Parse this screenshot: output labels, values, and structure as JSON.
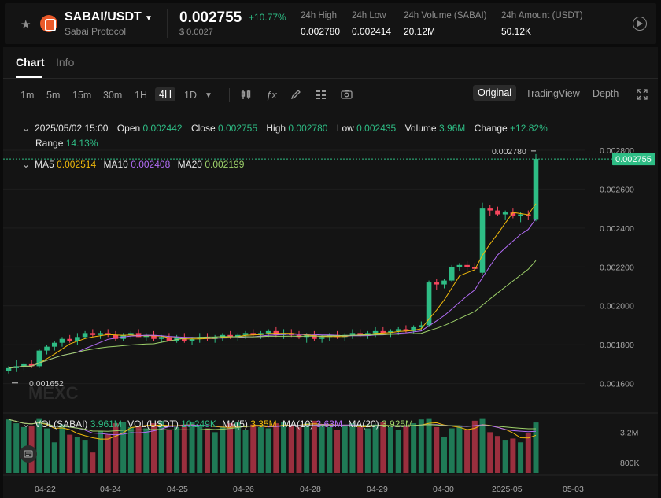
{
  "header": {
    "pair": "SABAI/USDT",
    "protocol": "Sabai Protocol",
    "price": "0.002755",
    "change": "+10.77%",
    "price_usd": "$ 0.0027",
    "stats": [
      {
        "label": "24h High",
        "value": "0.002780"
      },
      {
        "label": "24h Low",
        "value": "0.002414"
      },
      {
        "label": "24h Volume (SABAI)",
        "value": "20.12M"
      },
      {
        "label": "24h Amount (USDT)",
        "value": "50.12K"
      }
    ]
  },
  "tabs": [
    "Chart",
    "Info"
  ],
  "timeframes": [
    "1m",
    "5m",
    "15m",
    "30m",
    "1H",
    "4H",
    "1D"
  ],
  "active_timeframe": "4H",
  "views": [
    "Original",
    "TradingView",
    "Depth"
  ],
  "active_view": "Original",
  "ohlc": {
    "date": "2025/05/02 15:00",
    "open_label": "Open",
    "open": "0.002442",
    "close_label": "Close",
    "close": "0.002755",
    "high_label": "High",
    "high": "0.002780",
    "low_label": "Low",
    "low": "0.002435",
    "volume_label": "Volume",
    "volume": "3.96M",
    "change_label": "Change",
    "change": "+12.82%",
    "range_label": "Range",
    "range": "14.13%"
  },
  "ma": {
    "ma5_label": "MA5",
    "ma5": "0.002514",
    "ma10_label": "MA10",
    "ma10": "0.002408",
    "ma20_label": "MA20",
    "ma20": "0.002199"
  },
  "vol": {
    "sabai_label": "VOL(SABAI)",
    "sabai": "3.961M",
    "usdt_label": "VOL(USDT)",
    "usdt": "10.249K",
    "ma5_label": "MA(5)",
    "ma5": "3.35M",
    "ma10_label": "MA(10)",
    "ma10": "3.63M",
    "ma20_label": "MA(20)",
    "ma20": "3.925M"
  },
  "watermark": "MEXC",
  "colors": {
    "up": "#2ebd85",
    "down": "#f6465d",
    "ma5": "#f0b90b",
    "ma10": "#b26cf5",
    "ma20": "#9ed16a"
  },
  "chart_data": {
    "type": "candlestick",
    "price_axis_ticks": [
      "0.002800",
      "0.002600",
      "0.002400",
      "0.002200",
      "0.002000",
      "0.001800",
      "0.001600"
    ],
    "ylim": [
      0.00155,
      0.00282
    ],
    "volume_axis_ticks": [
      "3.2M",
      "800K"
    ],
    "x_ticks": [
      "04-22",
      "04-24",
      "04-25",
      "04-26",
      "04-28",
      "04-29",
      "04-30",
      "2025-05",
      "05-03"
    ],
    "current_price_label": "0.002755",
    "high_marker": "0.002780",
    "low_marker": "0.001652",
    "candles": [
      {
        "o": 0.001665,
        "h": 0.00169,
        "l": 0.001652,
        "c": 0.00168,
        "v": 4.2
      },
      {
        "o": 0.00168,
        "h": 0.00172,
        "l": 0.00166,
        "c": 0.00169,
        "v": 3.9
      },
      {
        "o": 0.00169,
        "h": 0.00171,
        "l": 0.00167,
        "c": 0.0017,
        "v": 3.6
      },
      {
        "o": 0.0017,
        "h": 0.00172,
        "l": 0.00168,
        "c": 0.00169,
        "v": 3.7
      },
      {
        "o": 0.00169,
        "h": 0.00178,
        "l": 0.00168,
        "c": 0.00177,
        "v": 4.3
      },
      {
        "o": 0.00177,
        "h": 0.0018,
        "l": 0.00175,
        "c": 0.00179,
        "v": 3.5
      },
      {
        "o": 0.00179,
        "h": 0.00182,
        "l": 0.00177,
        "c": 0.00181,
        "v": 2.4
      },
      {
        "o": 0.00181,
        "h": 0.00184,
        "l": 0.00179,
        "c": 0.00183,
        "v": 3.8
      },
      {
        "o": 0.00183,
        "h": 0.00185,
        "l": 0.00181,
        "c": 0.00182,
        "v": 3.0
      },
      {
        "o": 0.00182,
        "h": 0.00186,
        "l": 0.0018,
        "c": 0.00184,
        "v": 2.8
      },
      {
        "o": 0.00184,
        "h": 0.00187,
        "l": 0.00183,
        "c": 0.00186,
        "v": 2.6
      },
      {
        "o": 0.00186,
        "h": 0.00188,
        "l": 0.00184,
        "c": 0.00185,
        "v": 1.6
      },
      {
        "o": 0.00185,
        "h": 0.00187,
        "l": 0.00183,
        "c": 0.00186,
        "v": 3.3
      },
      {
        "o": 0.00186,
        "h": 0.00188,
        "l": 0.00184,
        "c": 0.00185,
        "v": 3.0
      },
      {
        "o": 0.00185,
        "h": 0.00187,
        "l": 0.00182,
        "c": 0.00183,
        "v": 3.9
      },
      {
        "o": 0.00183,
        "h": 0.00186,
        "l": 0.00182,
        "c": 0.00185,
        "v": 4.0
      },
      {
        "o": 0.00185,
        "h": 0.00187,
        "l": 0.00183,
        "c": 0.00186,
        "v": 3.6
      },
      {
        "o": 0.00186,
        "h": 0.00188,
        "l": 0.00184,
        "c": 0.00184,
        "v": 3.7
      },
      {
        "o": 0.00184,
        "h": 0.00186,
        "l": 0.00182,
        "c": 0.00185,
        "v": 3.5
      },
      {
        "o": 0.00185,
        "h": 0.00187,
        "l": 0.00182,
        "c": 0.00183,
        "v": 3.9
      },
      {
        "o": 0.00183,
        "h": 0.00185,
        "l": 0.00181,
        "c": 0.00184,
        "v": 4.1
      },
      {
        "o": 0.00184,
        "h": 0.00186,
        "l": 0.00182,
        "c": 0.00182,
        "v": 3.4
      },
      {
        "o": 0.00182,
        "h": 0.00185,
        "l": 0.00181,
        "c": 0.00184,
        "v": 3.6
      },
      {
        "o": 0.00184,
        "h": 0.00186,
        "l": 0.00181,
        "c": 0.00182,
        "v": 3.8
      },
      {
        "o": 0.00182,
        "h": 0.00184,
        "l": 0.0018,
        "c": 0.00183,
        "v": 4.0
      },
      {
        "o": 0.00183,
        "h": 0.00186,
        "l": 0.00181,
        "c": 0.00184,
        "v": 3.7
      },
      {
        "o": 0.00184,
        "h": 0.00186,
        "l": 0.00182,
        "c": 0.00183,
        "v": 3.5
      },
      {
        "o": 0.00183,
        "h": 0.00185,
        "l": 0.00181,
        "c": 0.00184,
        "v": 3.2
      },
      {
        "o": 0.00184,
        "h": 0.00186,
        "l": 0.00182,
        "c": 0.00185,
        "v": 3.6
      },
      {
        "o": 0.00185,
        "h": 0.00187,
        "l": 0.00183,
        "c": 0.00184,
        "v": 3.9
      },
      {
        "o": 0.00184,
        "h": 0.00186,
        "l": 0.00182,
        "c": 0.00185,
        "v": 4.0
      },
      {
        "o": 0.00185,
        "h": 0.00187,
        "l": 0.00183,
        "c": 0.00186,
        "v": 3.4
      },
      {
        "o": 0.00186,
        "h": 0.00188,
        "l": 0.00184,
        "c": 0.00185,
        "v": 3.8
      },
      {
        "o": 0.00185,
        "h": 0.00187,
        "l": 0.00183,
        "c": 0.00186,
        "v": 3.6
      },
      {
        "o": 0.00186,
        "h": 0.00188,
        "l": 0.00184,
        "c": 0.00187,
        "v": 3.5
      },
      {
        "o": 0.00187,
        "h": 0.00189,
        "l": 0.00184,
        "c": 0.00185,
        "v": 3.9
      },
      {
        "o": 0.00185,
        "h": 0.00188,
        "l": 0.00183,
        "c": 0.00186,
        "v": 4.0
      },
      {
        "o": 0.00186,
        "h": 0.00188,
        "l": 0.00184,
        "c": 0.00185,
        "v": 3.7
      },
      {
        "o": 0.00185,
        "h": 0.00187,
        "l": 0.00183,
        "c": 0.00184,
        "v": 3.6
      },
      {
        "o": 0.00184,
        "h": 0.00186,
        "l": 0.00181,
        "c": 0.00185,
        "v": 3.9
      },
      {
        "o": 0.00185,
        "h": 0.00187,
        "l": 0.00182,
        "c": 0.00183,
        "v": 4.1
      },
      {
        "o": 0.00183,
        "h": 0.00185,
        "l": 0.00181,
        "c": 0.00184,
        "v": 3.8
      },
      {
        "o": 0.00184,
        "h": 0.00186,
        "l": 0.00182,
        "c": 0.00185,
        "v": 3.6
      },
      {
        "o": 0.00185,
        "h": 0.00187,
        "l": 0.00183,
        "c": 0.00184,
        "v": 3.4
      },
      {
        "o": 0.00184,
        "h": 0.00186,
        "l": 0.00182,
        "c": 0.00185,
        "v": 3.7
      },
      {
        "o": 0.00185,
        "h": 0.00188,
        "l": 0.00183,
        "c": 0.00186,
        "v": 3.9
      },
      {
        "o": 0.00186,
        "h": 0.00188,
        "l": 0.00184,
        "c": 0.00185,
        "v": 3.6
      },
      {
        "o": 0.00185,
        "h": 0.00187,
        "l": 0.00183,
        "c": 0.00186,
        "v": 3.5
      },
      {
        "o": 0.00186,
        "h": 0.00189,
        "l": 0.00184,
        "c": 0.00187,
        "v": 3.8
      },
      {
        "o": 0.00187,
        "h": 0.00189,
        "l": 0.00185,
        "c": 0.00186,
        "v": 4.0
      },
      {
        "o": 0.00186,
        "h": 0.00188,
        "l": 0.00184,
        "c": 0.00187,
        "v": 3.6
      },
      {
        "o": 0.00187,
        "h": 0.00189,
        "l": 0.00185,
        "c": 0.00188,
        "v": 3.4
      },
      {
        "o": 0.00188,
        "h": 0.0019,
        "l": 0.00186,
        "c": 0.00187,
        "v": 3.7
      },
      {
        "o": 0.00187,
        "h": 0.0019,
        "l": 0.00186,
        "c": 0.00189,
        "v": 3.9
      },
      {
        "o": 0.00189,
        "h": 0.00192,
        "l": 0.00187,
        "c": 0.0019,
        "v": 4.2
      },
      {
        "o": 0.0019,
        "h": 0.00213,
        "l": 0.00189,
        "c": 0.00212,
        "v": 4.3
      },
      {
        "o": 0.00212,
        "h": 0.00214,
        "l": 0.00208,
        "c": 0.00211,
        "v": 3.6
      },
      {
        "o": 0.00211,
        "h": 0.00214,
        "l": 0.00209,
        "c": 0.00213,
        "v": 2.8
      },
      {
        "o": 0.00213,
        "h": 0.00221,
        "l": 0.00212,
        "c": 0.0022,
        "v": 3.5
      },
      {
        "o": 0.0022,
        "h": 0.00222,
        "l": 0.00218,
        "c": 0.00221,
        "v": 3.7
      },
      {
        "o": 0.00221,
        "h": 0.00223,
        "l": 0.00218,
        "c": 0.0022,
        "v": 3.4
      },
      {
        "o": 0.0022,
        "h": 0.00222,
        "l": 0.00218,
        "c": 0.00219,
        "v": 4.1
      },
      {
        "o": 0.00217,
        "h": 0.00253,
        "l": 0.00216,
        "c": 0.0025,
        "v": 4.3
      },
      {
        "o": 0.0025,
        "h": 0.00252,
        "l": 0.00246,
        "c": 0.00249,
        "v": 3.2
      },
      {
        "o": 0.00249,
        "h": 0.00251,
        "l": 0.00246,
        "c": 0.00247,
        "v": 2.9
      },
      {
        "o": 0.00247,
        "h": 0.00249,
        "l": 0.00244,
        "c": 0.00248,
        "v": 2.6
      },
      {
        "o": 0.00248,
        "h": 0.0025,
        "l": 0.00245,
        "c": 0.00246,
        "v": 2.7
      },
      {
        "o": 0.00246,
        "h": 0.00248,
        "l": 0.00243,
        "c": 0.00247,
        "v": 2.4
      },
      {
        "o": 0.00247,
        "h": 0.00249,
        "l": 0.00244,
        "c": 0.00246,
        "v": 3.1
      },
      {
        "o": 0.002442,
        "h": 0.00278,
        "l": 0.002435,
        "c": 0.002755,
        "v": 3.96
      }
    ]
  }
}
